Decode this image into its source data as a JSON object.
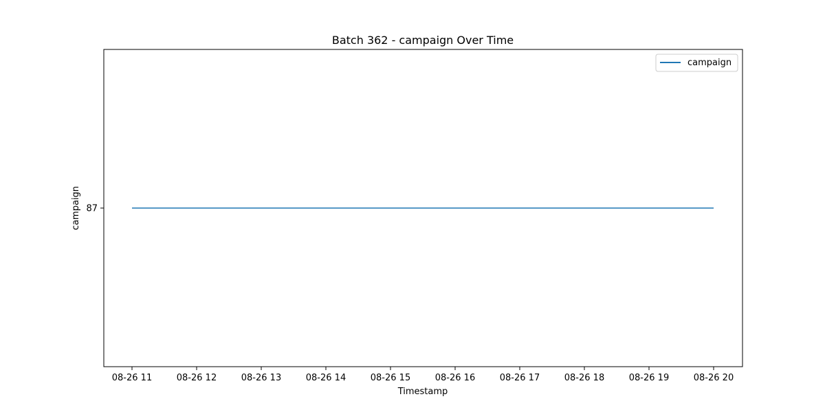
{
  "chart_data": {
    "type": "line",
    "title": "Batch 362 - campaign Over Time",
    "xlabel": "Timestamp",
    "ylabel": "campaign",
    "x_ticks": [
      "08-26 11",
      "08-26 12",
      "08-26 13",
      "08-26 14",
      "08-26 15",
      "08-26 16",
      "08-26 17",
      "08-26 18",
      "08-26 19",
      "08-26 20"
    ],
    "y_ticks": [
      "87"
    ],
    "ylim": [
      86.9,
      87.1
    ],
    "grid": false,
    "legend_position": "top-right",
    "series": [
      {
        "name": "campaign",
        "color": "#1f77b4",
        "x": [
          "08-26 11",
          "08-26 12",
          "08-26 13",
          "08-26 14",
          "08-26 15",
          "08-26 16",
          "08-26 17",
          "08-26 18",
          "08-26 19",
          "08-26 20"
        ],
        "values": [
          87,
          87,
          87,
          87,
          87,
          87,
          87,
          87,
          87,
          87
        ]
      }
    ]
  }
}
